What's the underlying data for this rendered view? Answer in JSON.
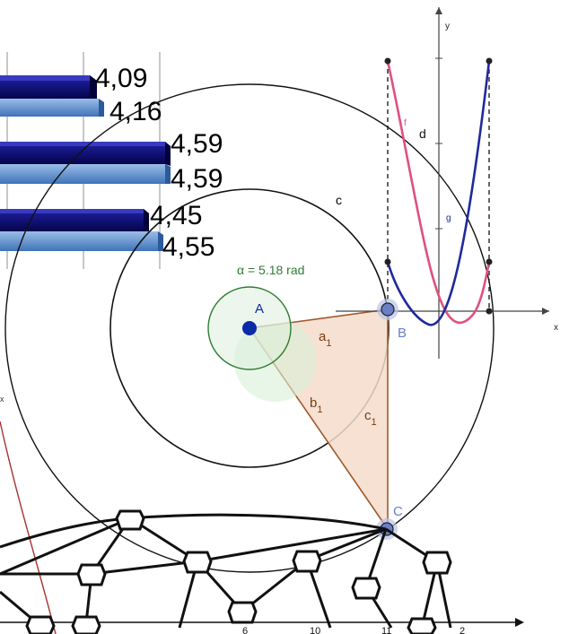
{
  "bar_values": [
    "4,09",
    "4,16",
    "4,59",
    "4,59",
    "4,45",
    "4,55"
  ],
  "geometry_labels": {
    "angle": "α = 5.18 rad",
    "point_a": "A",
    "point_b": "B",
    "point_c": "C",
    "circle": "c",
    "side_a": "a",
    "side_b": "b",
    "side_c": "c",
    "subscript": "1"
  },
  "function_plot": {
    "y_axis": "y",
    "x_axis": "x",
    "curve_f": "f",
    "curve_g": "g",
    "segment_d": "d"
  },
  "bottom_axis_ticks": [
    "6",
    "10",
    "11",
    "2"
  ],
  "side_label": "x",
  "colors": {
    "bar_dark": "#0a0a6e",
    "bar_light": "#6a98d4",
    "triangle_fill": "#f5dccb",
    "triangle_stroke": "#a05a2c",
    "angle_green": "#2e7d32",
    "point_blue": "#0a2aa8",
    "curve_f": "#e0507e",
    "curve_g": "#1f2a9c",
    "red_line": "#a83232"
  }
}
